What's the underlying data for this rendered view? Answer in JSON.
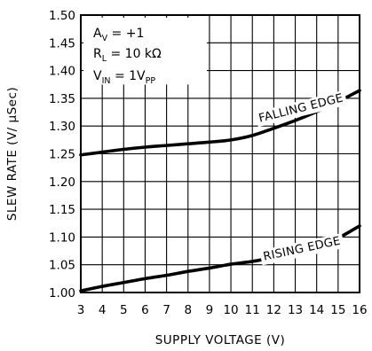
{
  "chart_data": {
    "type": "line",
    "xlabel": "SUPPLY VOLTAGE (V)",
    "ylabel": "SLEW RATE (V/ μSec)",
    "xlim": [
      3,
      16
    ],
    "ylim": [
      1.0,
      1.5
    ],
    "x_ticks": [
      "3",
      "4",
      "5",
      "6",
      "7",
      "8",
      "9",
      "10",
      "11",
      "12",
      "13",
      "14",
      "15",
      "16"
    ],
    "y_ticks": [
      "1.00",
      "1.05",
      "1.10",
      "1.15",
      "1.20",
      "1.25",
      "1.30",
      "1.35",
      "1.40",
      "1.45",
      "1.50"
    ],
    "grid": true,
    "conditions": [
      {
        "main": "A",
        "sub": "V",
        "rest": " = +1"
      },
      {
        "main": "R",
        "sub": "L",
        "rest": " = 10 kΩ"
      },
      {
        "main": "V",
        "sub": "IN",
        "rest": " = 1V",
        "sub2": "PP"
      }
    ],
    "series": [
      {
        "name": "FALLING EDGE",
        "x": [
          3,
          4,
          5,
          6,
          7,
          8,
          9,
          10,
          11,
          12,
          13,
          14,
          15,
          16
        ],
        "y": [
          1.248,
          1.253,
          1.258,
          1.262,
          1.265,
          1.268,
          1.271,
          1.275,
          1.283,
          1.296,
          1.31,
          1.326,
          1.344,
          1.364
        ]
      },
      {
        "name": "RISING EDGE",
        "x": [
          3,
          4,
          5,
          6,
          7,
          8,
          9,
          10,
          11,
          12,
          13,
          14,
          15,
          16
        ],
        "y": [
          1.003,
          1.011,
          1.018,
          1.025,
          1.031,
          1.038,
          1.044,
          1.051,
          1.056,
          1.063,
          1.071,
          1.082,
          1.098,
          1.12
        ]
      }
    ]
  }
}
